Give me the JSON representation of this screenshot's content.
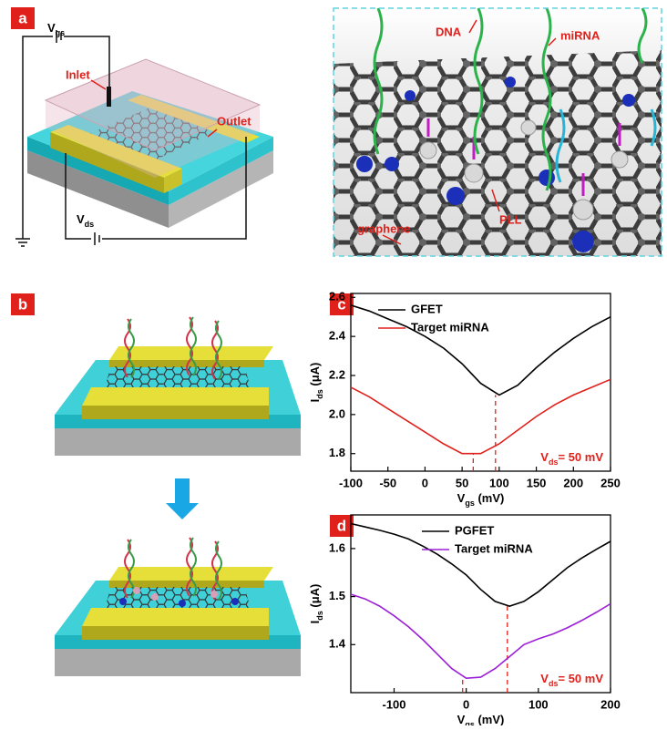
{
  "panel_a": {
    "label": "a",
    "vgs": {
      "main": "V",
      "sub": "gs"
    },
    "vds": {
      "main": "V",
      "sub": "ds"
    },
    "inlet": "Inlet",
    "outlet": "Outlet",
    "dna": "DNA",
    "mirna": "miRNA",
    "pll": "PLL",
    "graphene": "graphene"
  },
  "panel_b": {
    "label": "b"
  },
  "chart_data": [
    {
      "type": "line",
      "label": "c",
      "x": [
        -100,
        -75,
        -50,
        -25,
        0,
        25,
        50,
        75,
        100,
        125,
        150,
        175,
        200,
        225,
        250
      ],
      "series": [
        {
          "name": "GFET",
          "color": "#000000",
          "values": [
            2.56,
            2.53,
            2.49,
            2.45,
            2.4,
            2.34,
            2.26,
            2.16,
            2.1,
            2.15,
            2.24,
            2.32,
            2.39,
            2.45,
            2.5
          ]
        },
        {
          "name": "Target miRNA",
          "color": "#e0201b",
          "values": [
            2.14,
            2.09,
            2.03,
            1.97,
            1.91,
            1.85,
            1.8,
            1.8,
            1.85,
            1.92,
            1.99,
            2.05,
            2.1,
            2.14,
            2.18
          ]
        }
      ],
      "guides": [
        {
          "x": 65,
          "y": 1.8
        },
        {
          "x": 95,
          "y": 2.1
        }
      ],
      "xlim": [
        -100,
        250
      ],
      "ylim": [
        1.71,
        2.62
      ],
      "xticks": [
        -100,
        -50,
        0,
        50,
        100,
        150,
        200,
        250
      ],
      "yticks": [
        1.8,
        {
          "value": 2,
          "label": "2.0"
        },
        2.2,
        2.4,
        2.6
      ],
      "xlabel": {
        "main": "V",
        "sub": "gs",
        "rest": " (mV)"
      },
      "ylabel": {
        "main": "I",
        "sub": "ds",
        "rest": " (μA)"
      },
      "annotation": {
        "main": "V",
        "sub": "ds",
        "rest": "= 50 mV"
      },
      "legend": "upper left"
    },
    {
      "type": "line",
      "label": "d",
      "x": [
        -160,
        -140,
        -120,
        -100,
        -80,
        -60,
        -40,
        -20,
        0,
        20,
        40,
        60,
        80,
        100,
        120,
        140,
        160,
        180,
        200
      ],
      "series": [
        {
          "name": "PGFET",
          "color": "#000000",
          "values": [
            1.652,
            1.645,
            1.638,
            1.63,
            1.62,
            1.605,
            1.588,
            1.568,
            1.545,
            1.515,
            1.49,
            1.48,
            1.49,
            1.51,
            1.535,
            1.56,
            1.58,
            1.598,
            1.615
          ]
        },
        {
          "name": "Target miRNA",
          "color": "#9b1fd6",
          "values": [
            1.505,
            1.495,
            1.48,
            1.46,
            1.437,
            1.41,
            1.38,
            1.35,
            1.33,
            1.332,
            1.35,
            1.375,
            1.4,
            1.412,
            1.422,
            1.435,
            1.45,
            1.467,
            1.485
          ]
        }
      ],
      "guides": [
        {
          "x": -5,
          "y": 1.33
        },
        {
          "x": 57,
          "y": 1.48
        }
      ],
      "xlim": [
        -160,
        200
      ],
      "ylim": [
        1.3,
        1.67
      ],
      "xticks": [
        -100,
        0,
        100,
        200
      ],
      "yticks": [
        1.4,
        1.5,
        1.6
      ],
      "xlabel": {
        "main": "V",
        "sub": "gs",
        "rest": " (mV)"
      },
      "ylabel": {
        "main": "I",
        "sub": "ds",
        "rest": " (μA)"
      },
      "annotation": {
        "main": "V",
        "sub": "ds",
        "rest": "= 50 mV"
      },
      "legend": "upper left"
    }
  ]
}
